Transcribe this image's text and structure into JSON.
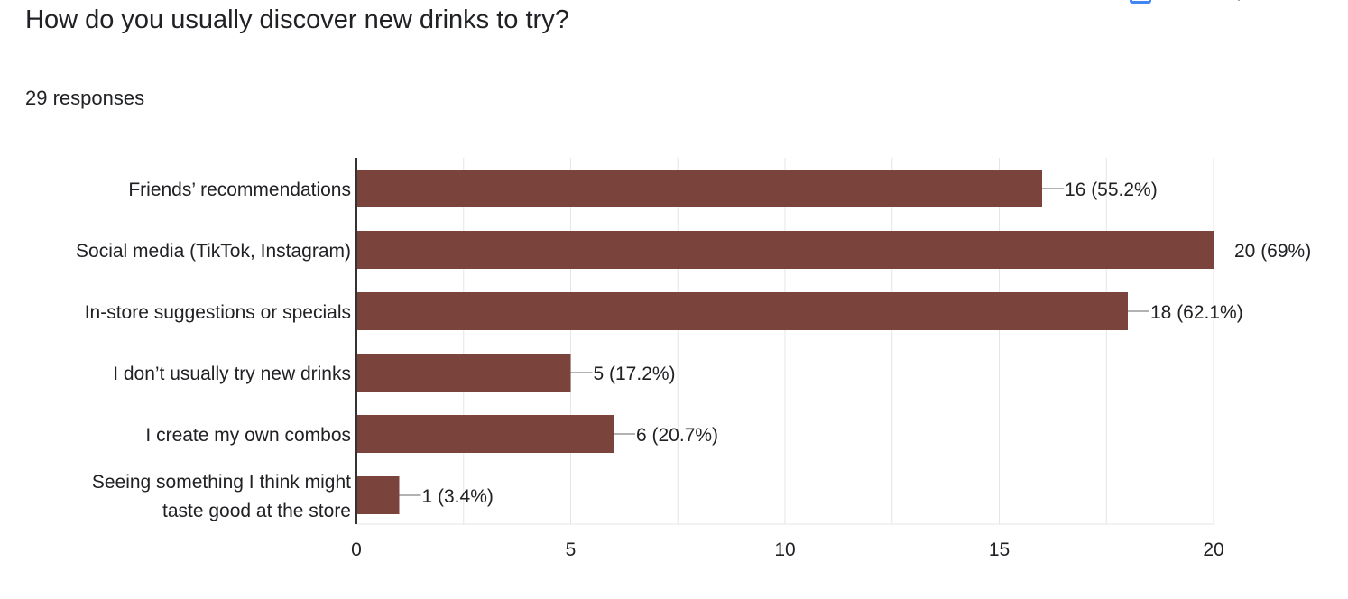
{
  "question": {
    "title": "How do you usually discover new drinks to try?",
    "responses": "29 responses"
  },
  "icons": {
    "copy_chart": "copy-chart-icon"
  },
  "colors": {
    "bar": "#7a433c",
    "grid": "#e6e6e6",
    "axis": "#333333",
    "text": "#202124",
    "leader": "#999999"
  },
  "chart_data": {
    "type": "bar",
    "orientation": "horizontal",
    "categories": [
      [
        "Friends’ recommendations"
      ],
      [
        "Social media (TikTok, Instagram)"
      ],
      [
        "In-store suggestions or specials"
      ],
      [
        "I don’t usually try new drinks"
      ],
      [
        "I create my own combos"
      ],
      [
        "Seeing something I think might",
        "taste good at the store"
      ]
    ],
    "values": [
      16,
      20,
      18,
      5,
      6,
      1
    ],
    "data_labels": [
      "16 (55.2%)",
      "20 (69%)",
      "18 (62.1%)",
      "5 (17.2%)",
      "6 (20.7%)",
      "1 (3.4%)"
    ],
    "x_ticks": [
      0,
      5,
      10,
      15,
      20
    ],
    "xlim": [
      0,
      20
    ],
    "grid": true,
    "title": "",
    "xlabel": "",
    "ylabel": ""
  }
}
